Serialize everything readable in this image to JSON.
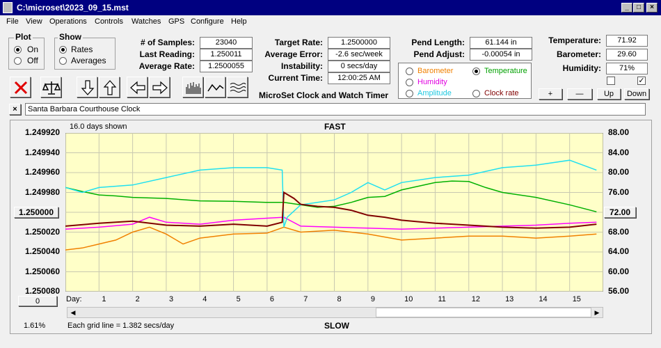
{
  "window": {
    "title": "C:\\microset\\2023_09_15.mst"
  },
  "menu": [
    "File",
    "View",
    "Operations",
    "Controls",
    "Watches",
    "GPS",
    "Configure",
    "Help"
  ],
  "plot_group": {
    "title": "Plot",
    "on": "On",
    "off": "Off",
    "selected": "On"
  },
  "show_group": {
    "title": "Show",
    "rates": "Rates",
    "averages": "Averages",
    "selected": "Rates"
  },
  "stats": {
    "samples_label": "# of Samples:",
    "samples": "23040",
    "last_reading_label": "Last Reading:",
    "last_reading": "1.250011",
    "average_rate_label": "Average Rate:",
    "average_rate": "1.2500055",
    "target_rate_label": "Target Rate:",
    "target_rate": "1.2500000",
    "average_error_label": "Average Error:",
    "average_error": "-2.6 sec/week",
    "instability_label": "Instability:",
    "instability": "0 secs/day",
    "current_time_label": "Current Time:",
    "current_time": "12:00:25 AM",
    "pend_length_label": "Pend Length:",
    "pend_length": "61.144 in",
    "pend_adjust_label": "Pend Adjust:",
    "pend_adjust": "-0.00054 in",
    "temperature_label": "Temperature:",
    "temperature": "71.92",
    "barometer_label": "Barometer:",
    "barometer": "29.60",
    "humidity_label": "Humidity:",
    "humidity": "71%"
  },
  "app_name": "MicroSet Clock and Watch Timer",
  "legend": {
    "barometer": "Barometer",
    "temperature": "Temperature",
    "humidity": "Humidity",
    "amplitude": "Amplitude",
    "clock_rate": "Clock rate",
    "selected": "Temperature"
  },
  "right_buttons": {
    "plus": "+",
    "minus": "—",
    "up": "Up",
    "down": "Down"
  },
  "checkboxes": [
    false,
    true
  ],
  "toolbar_icons": [
    "stop-icon",
    "balance-icon",
    "arrow-down-icon",
    "arrow-up-icon",
    "arrow-left-icon",
    "arrow-right-icon",
    "bars-icon",
    "wave-icon",
    "multiwave-icon"
  ],
  "watch_name": "Santa Barbara Courthouse Clock",
  "chart_data": {
    "type": "line",
    "days_shown": "16.0 days shown",
    "top_label": "FAST",
    "bottom_label": "SLOW",
    "left_ticks": [
      "1.249920",
      "1.249940",
      "1.249960",
      "1.249980",
      "1.250000",
      "1.250020",
      "1.250040",
      "1.250060",
      "1.250080"
    ],
    "right_ticks": [
      "88.00",
      "84.00",
      "80.00",
      "76.00",
      "72.00",
      "68.00",
      "64.00",
      "60.00",
      "56.00"
    ],
    "left_highlight": "1.250000",
    "right_highlight": "72.00",
    "left_ylim": [
      1.24992,
      1.25008
    ],
    "right_ylim": [
      56,
      88
    ],
    "x_label": "Day:",
    "x_ticks": [
      "1",
      "2",
      "3",
      "4",
      "5",
      "6",
      "7",
      "8",
      "9",
      "10",
      "11",
      "12",
      "13",
      "14",
      "15"
    ],
    "xlim": [
      0,
      16
    ],
    "grid_note": "Each grid line = 1.382 secs/day",
    "offset_button": "0",
    "percent": "1.61%",
    "series": [
      {
        "name": "Temperature",
        "color": "#00b000",
        "x": [
          0,
          0.5,
          1,
          1.5,
          2,
          3,
          4,
          5,
          6,
          6.5,
          7,
          7.5,
          8,
          8.5,
          9,
          9.5,
          10,
          11,
          11.5,
          12,
          12.5,
          13,
          14,
          15,
          15.8
        ],
        "y": [
          77,
          76.2,
          75.5,
          75.3,
          75,
          74.8,
          74.3,
          74.2,
          74,
          74,
          73.5,
          73,
          73.2,
          74,
          75,
          75.2,
          76.5,
          78,
          78.3,
          78.2,
          77,
          76,
          75,
          73.5,
          72.1
        ]
      },
      {
        "name": "Humidity",
        "color": "#ff00ff",
        "x": [
          0,
          1,
          2,
          2.5,
          3,
          4,
          5,
          6,
          6.5,
          7,
          8,
          9,
          10,
          11,
          12,
          13,
          14,
          15,
          15.8
        ],
        "y": [
          1.250017,
          1.250015,
          1.250012,
          1.250005,
          1.25001,
          1.250012,
          1.250008,
          1.250006,
          1.250005,
          1.250014,
          1.250015,
          1.250016,
          1.250017,
          1.250016,
          1.250015,
          1.250014,
          1.250013,
          1.250011,
          1.25001
        ]
      },
      {
        "name": "Barometer",
        "color": "#f08000",
        "x": [
          0,
          0.5,
          1,
          1.5,
          2,
          2.5,
          3,
          3.5,
          4,
          5,
          6,
          6.5,
          7,
          8,
          9,
          10,
          11,
          12,
          13,
          14,
          15,
          15.8
        ],
        "y": [
          1.250038,
          1.250036,
          1.250032,
          1.250028,
          1.25002,
          1.250015,
          1.250022,
          1.250032,
          1.250026,
          1.250022,
          1.250021,
          1.250015,
          1.25002,
          1.250018,
          1.250022,
          1.250028,
          1.250026,
          1.250024,
          1.250024,
          1.250026,
          1.250024,
          1.250022
        ]
      },
      {
        "name": "Amplitude",
        "color": "#20e0f0",
        "x": [
          0,
          0.5,
          1,
          2,
          3,
          4,
          5,
          6,
          6.45,
          6.5,
          6.6,
          7,
          7.5,
          8,
          8.5,
          9,
          9.5,
          10,
          11,
          12,
          13,
          14,
          15,
          15.8
        ],
        "y": [
          77,
          76,
          77,
          77.5,
          79,
          80.5,
          81,
          81,
          80.5,
          69,
          71,
          73.5,
          74,
          74.5,
          76,
          78,
          76.5,
          78,
          79,
          79.5,
          81,
          81.5,
          82.5,
          80.5
        ]
      },
      {
        "name": "Clock rate",
        "color": "#800000",
        "x": [
          0,
          1,
          2,
          3,
          4,
          5,
          6,
          6.45,
          6.5,
          6.8,
          7,
          7.5,
          8,
          8.5,
          9,
          9.5,
          10,
          11,
          12,
          13,
          14,
          15,
          15.8
        ],
        "y": [
          1.250014,
          1.250011,
          1.250009,
          1.250013,
          1.250014,
          1.250012,
          1.250014,
          1.25001,
          1.24998,
          1.249986,
          1.249992,
          1.249994,
          1.249995,
          1.249998,
          1.250003,
          1.250005,
          1.250008,
          1.250011,
          1.250013,
          1.250015,
          1.250016,
          1.250015,
          1.250012
        ]
      }
    ]
  }
}
